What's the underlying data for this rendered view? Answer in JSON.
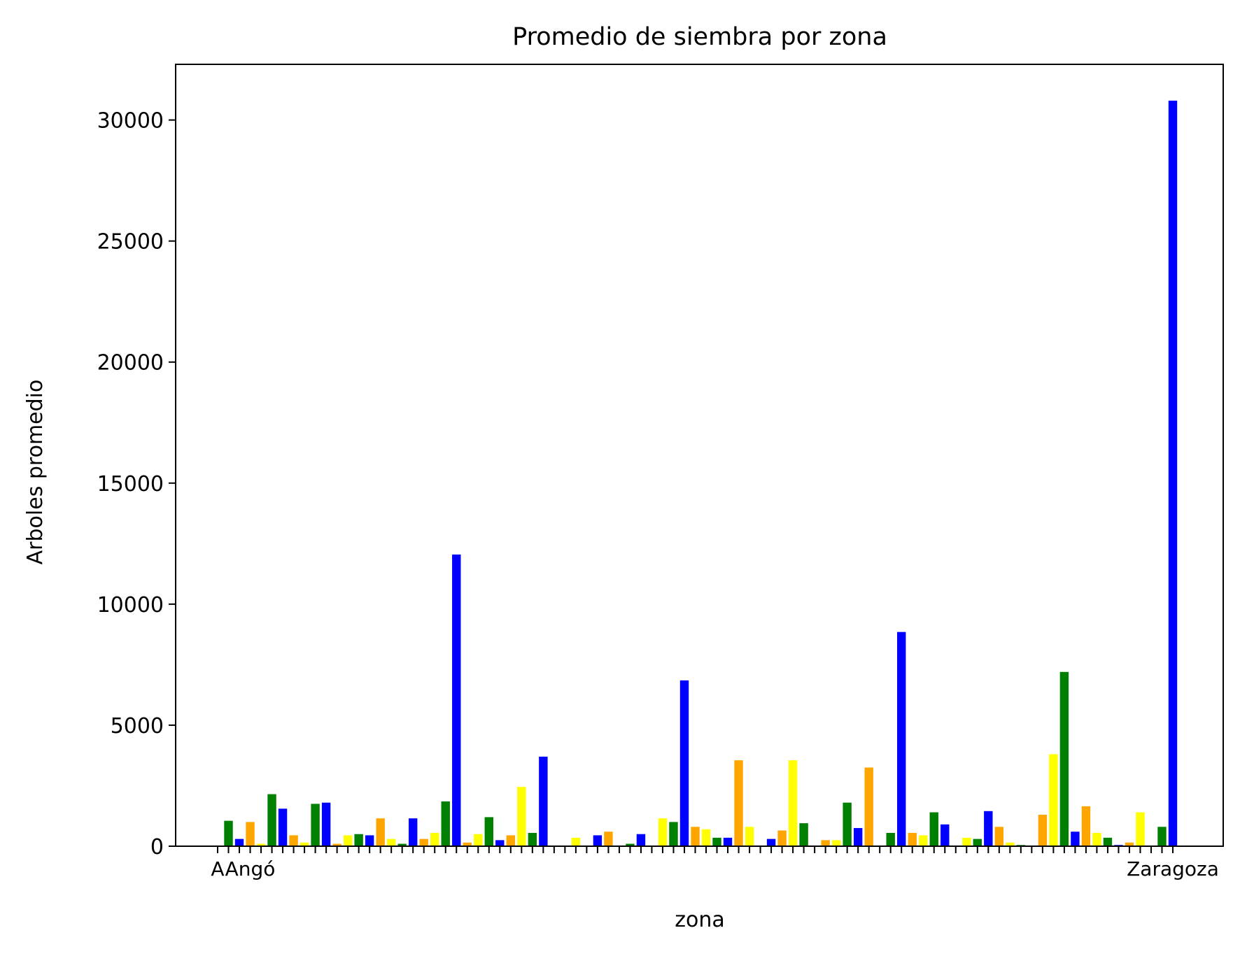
{
  "chart_data": {
    "type": "bar",
    "title": "Promedio de siembra por zona",
    "xlabel": "zona",
    "ylabel": "Arboles promedio",
    "ylim": [
      0,
      32300
    ],
    "yticks": [
      0,
      5000,
      10000,
      15000,
      20000,
      25000,
      30000
    ],
    "grid": false,
    "legend": "none",
    "xtick_labels_overlapping": true,
    "colors_cycle": [
      "#008000",
      "#0000ff",
      "#ffa500",
      "#ffff00"
    ],
    "values": [
      0,
      1050,
      300,
      1000,
      100,
      2150,
      1550,
      450,
      150,
      1750,
      1800,
      100,
      450,
      500,
      450,
      1150,
      300,
      100,
      1150,
      300,
      550,
      1850,
      12050,
      150,
      500,
      1200,
      250,
      450,
      2450,
      550,
      3700,
      0,
      0,
      350,
      0,
      450,
      600,
      0,
      100,
      500,
      0,
      1150,
      1000,
      6850,
      800,
      700,
      350,
      350,
      3550,
      800,
      0,
      300,
      650,
      3550,
      950,
      0,
      250,
      250,
      1800,
      750,
      3250,
      0,
      550,
      8850,
      550,
      450,
      1400,
      900,
      0,
      350,
      300,
      1450,
      800,
      150,
      50,
      0,
      1300,
      3800,
      7200,
      600,
      1650,
      550,
      350,
      50,
      150,
      1400,
      0,
      800,
      30800
    ],
    "bar_colors": [
      "#ffff00",
      "#008000",
      "#0000ff",
      "#ffa500",
      "#ffff00",
      "#008000",
      "#0000ff",
      "#ffa500",
      "#ffff00",
      "#008000",
      "#0000ff",
      "#ffa500",
      "#ffff00",
      "#008000",
      "#0000ff",
      "#ffa500",
      "#ffff00",
      "#008000",
      "#0000ff",
      "#ffa500",
      "#ffff00",
      "#008000",
      "#0000ff",
      "#ffa500",
      "#ffff00",
      "#008000",
      "#0000ff",
      "#ffa500",
      "#ffff00",
      "#008000",
      "#0000ff",
      "#ffa500",
      "#ffff00",
      "#ffff00",
      "#008000",
      "#0000ff",
      "#ffa500",
      "#ffff00",
      "#008000",
      "#0000ff",
      "#ffa500",
      "#ffff00",
      "#008000",
      "#0000ff",
      "#ffa500",
      "#ffff00",
      "#008000",
      "#0000ff",
      "#ffa500",
      "#ffff00",
      "#008000",
      "#0000ff",
      "#ffa500",
      "#ffff00",
      "#008000",
      "#0000ff",
      "#ffa500",
      "#ffff00",
      "#008000",
      "#0000ff",
      "#ffa500",
      "#ffff00",
      "#008000",
      "#0000ff",
      "#ffa500",
      "#ffff00",
      "#008000",
      "#0000ff",
      "#ffa500",
      "#ffff00",
      "#008000",
      "#0000ff",
      "#ffa500",
      "#ffff00",
      "#008000",
      "#0000ff",
      "#ffa500",
      "#ffff00",
      "#008000",
      "#0000ff",
      "#ffa500",
      "#ffff00",
      "#008000",
      "#0000ff",
      "#ffa500",
      "#ffff00",
      "#008000",
      "#008000",
      "#0000ff"
    ],
    "visible_tick_label_fragments": [
      {
        "text": "A",
        "at_bar": 0
      },
      {
        "text": "Angó",
        "at_bar": 3
      },
      {
        "text": "Zaragoza",
        "at_bar": 88
      }
    ]
  }
}
